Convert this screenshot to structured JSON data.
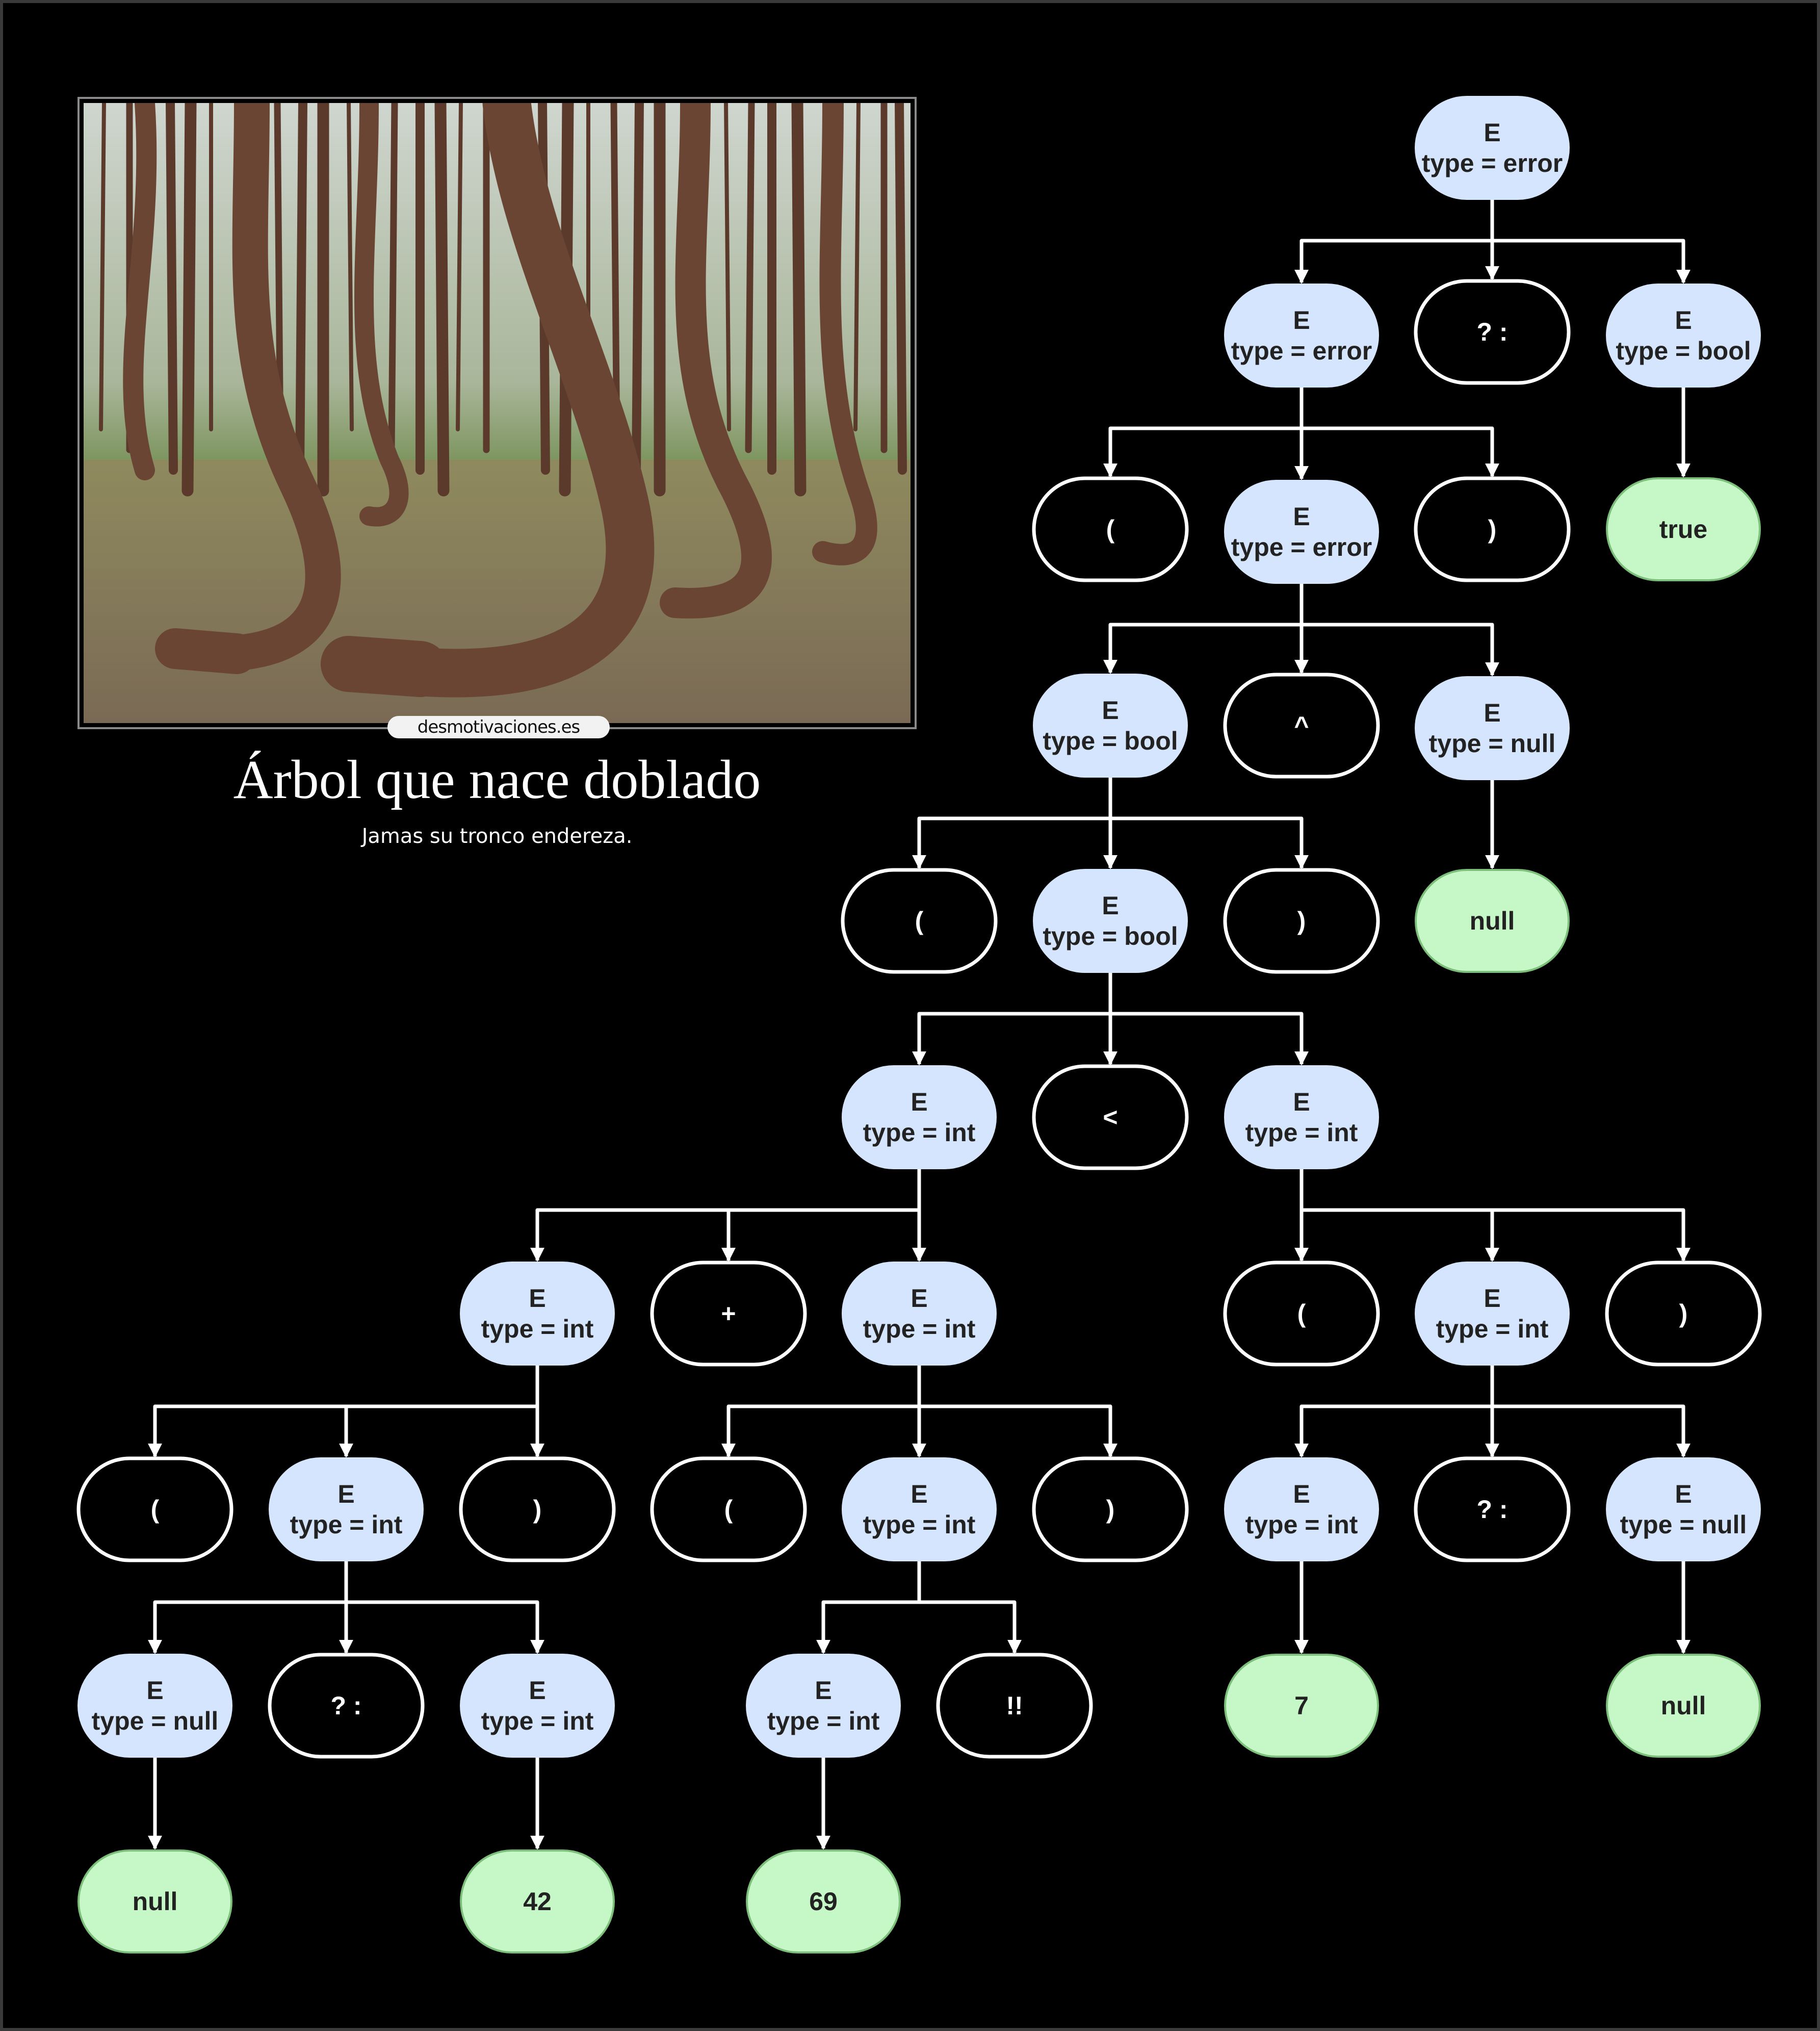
{
  "meme": {
    "watermark": "desmotivaciones.es",
    "title": "Árbol que nace doblado",
    "subtitle": "Jamas su tronco endereza."
  },
  "colors": {
    "background": "#000000",
    "nonterminal_fill": "#d4e5fd",
    "terminal_fill": "#c6f7c6",
    "terminal_stroke": "#7bbf7b",
    "token_stroke": "#ffffff",
    "edge": "#ffffff"
  },
  "tree": {
    "nodes": [
      {
        "id": "n0",
        "kind": "expr",
        "lines": [
          "E",
          "type = error"
        ]
      },
      {
        "id": "n1",
        "kind": "expr",
        "lines": [
          "E",
          "type = error"
        ]
      },
      {
        "id": "n2",
        "kind": "token",
        "lines": [
          "? :"
        ]
      },
      {
        "id": "n3",
        "kind": "expr",
        "lines": [
          "E",
          "type = bool"
        ]
      },
      {
        "id": "n4",
        "kind": "token",
        "lines": [
          "("
        ]
      },
      {
        "id": "n5",
        "kind": "expr",
        "lines": [
          "E",
          "type = error"
        ]
      },
      {
        "id": "n6",
        "kind": "token",
        "lines": [
          ")"
        ]
      },
      {
        "id": "n7",
        "kind": "literal",
        "lines": [
          "true"
        ]
      },
      {
        "id": "n8",
        "kind": "expr",
        "lines": [
          "E",
          "type = bool"
        ]
      },
      {
        "id": "n9",
        "kind": "token",
        "lines": [
          "^"
        ]
      },
      {
        "id": "n10",
        "kind": "expr",
        "lines": [
          "E",
          "type = null"
        ]
      },
      {
        "id": "n11",
        "kind": "token",
        "lines": [
          "("
        ]
      },
      {
        "id": "n12",
        "kind": "expr",
        "lines": [
          "E",
          "type = bool"
        ]
      },
      {
        "id": "n13",
        "kind": "token",
        "lines": [
          ")"
        ]
      },
      {
        "id": "n14",
        "kind": "literal",
        "lines": [
          "null"
        ]
      },
      {
        "id": "n15",
        "kind": "expr",
        "lines": [
          "E",
          "type = int"
        ]
      },
      {
        "id": "n16",
        "kind": "token",
        "lines": [
          "<"
        ]
      },
      {
        "id": "n17",
        "kind": "expr",
        "lines": [
          "E",
          "type = int"
        ]
      },
      {
        "id": "n18",
        "kind": "expr",
        "lines": [
          "E",
          "type = int"
        ]
      },
      {
        "id": "n19",
        "kind": "token",
        "lines": [
          "+"
        ]
      },
      {
        "id": "n20",
        "kind": "expr",
        "lines": [
          "E",
          "type = int"
        ]
      },
      {
        "id": "n21",
        "kind": "token",
        "lines": [
          "("
        ]
      },
      {
        "id": "n22",
        "kind": "expr",
        "lines": [
          "E",
          "type = int"
        ]
      },
      {
        "id": "n23",
        "kind": "token",
        "lines": [
          ")"
        ]
      },
      {
        "id": "n24",
        "kind": "token",
        "lines": [
          "("
        ]
      },
      {
        "id": "n25",
        "kind": "expr",
        "lines": [
          "E",
          "type = int"
        ]
      },
      {
        "id": "n26",
        "kind": "token",
        "lines": [
          ")"
        ]
      },
      {
        "id": "n27",
        "kind": "token",
        "lines": [
          "("
        ]
      },
      {
        "id": "n28",
        "kind": "expr",
        "lines": [
          "E",
          "type = int"
        ]
      },
      {
        "id": "n29",
        "kind": "token",
        "lines": [
          ")"
        ]
      },
      {
        "id": "n30",
        "kind": "expr",
        "lines": [
          "E",
          "type = int"
        ]
      },
      {
        "id": "n31",
        "kind": "token",
        "lines": [
          "? :"
        ]
      },
      {
        "id": "n32",
        "kind": "expr",
        "lines": [
          "E",
          "type = null"
        ]
      },
      {
        "id": "n33",
        "kind": "expr",
        "lines": [
          "E",
          "type = null"
        ]
      },
      {
        "id": "n34",
        "kind": "token",
        "lines": [
          "? :"
        ]
      },
      {
        "id": "n35",
        "kind": "expr",
        "lines": [
          "E",
          "type = int"
        ]
      },
      {
        "id": "n36",
        "kind": "expr",
        "lines": [
          "E",
          "type = int"
        ]
      },
      {
        "id": "n37",
        "kind": "token",
        "lines": [
          "!!"
        ]
      },
      {
        "id": "n38",
        "kind": "literal",
        "lines": [
          "7"
        ]
      },
      {
        "id": "n39",
        "kind": "literal",
        "lines": [
          "null"
        ]
      },
      {
        "id": "n40",
        "kind": "literal",
        "lines": [
          "null"
        ]
      },
      {
        "id": "n41",
        "kind": "literal",
        "lines": [
          "42"
        ]
      },
      {
        "id": "n42",
        "kind": "literal",
        "lines": [
          "69"
        ]
      }
    ],
    "edges": [
      {
        "from": "n0",
        "to": [
          "n1",
          "n2",
          "n3"
        ]
      },
      {
        "from": "n1",
        "to": [
          "n4",
          "n5",
          "n6"
        ]
      },
      {
        "from": "n3",
        "to": [
          "n7"
        ]
      },
      {
        "from": "n5",
        "to": [
          "n8",
          "n9",
          "n10"
        ]
      },
      {
        "from": "n8",
        "to": [
          "n11",
          "n12",
          "n13"
        ]
      },
      {
        "from": "n10",
        "to": [
          "n14"
        ]
      },
      {
        "from": "n12",
        "to": [
          "n15",
          "n16",
          "n17"
        ]
      },
      {
        "from": "n15",
        "to": [
          "n18",
          "n19",
          "n20"
        ]
      },
      {
        "from": "n17",
        "to": [
          "n27",
          "n28",
          "n29"
        ]
      },
      {
        "from": "n18",
        "to": [
          "n21",
          "n22",
          "n23"
        ]
      },
      {
        "from": "n20",
        "to": [
          "n24",
          "n25",
          "n26"
        ]
      },
      {
        "from": "n28",
        "to": [
          "n30",
          "n31",
          "n32"
        ]
      },
      {
        "from": "n22",
        "to": [
          "n33",
          "n34",
          "n35"
        ]
      },
      {
        "from": "n25",
        "to": [
          "n36",
          "n37"
        ]
      },
      {
        "from": "n30",
        "to": [
          "n38"
        ]
      },
      {
        "from": "n32",
        "to": [
          "n39"
        ]
      },
      {
        "from": "n33",
        "to": [
          "n40"
        ]
      },
      {
        "from": "n35",
        "to": [
          "n41"
        ]
      },
      {
        "from": "n36",
        "to": [
          "n42"
        ]
      }
    ]
  }
}
